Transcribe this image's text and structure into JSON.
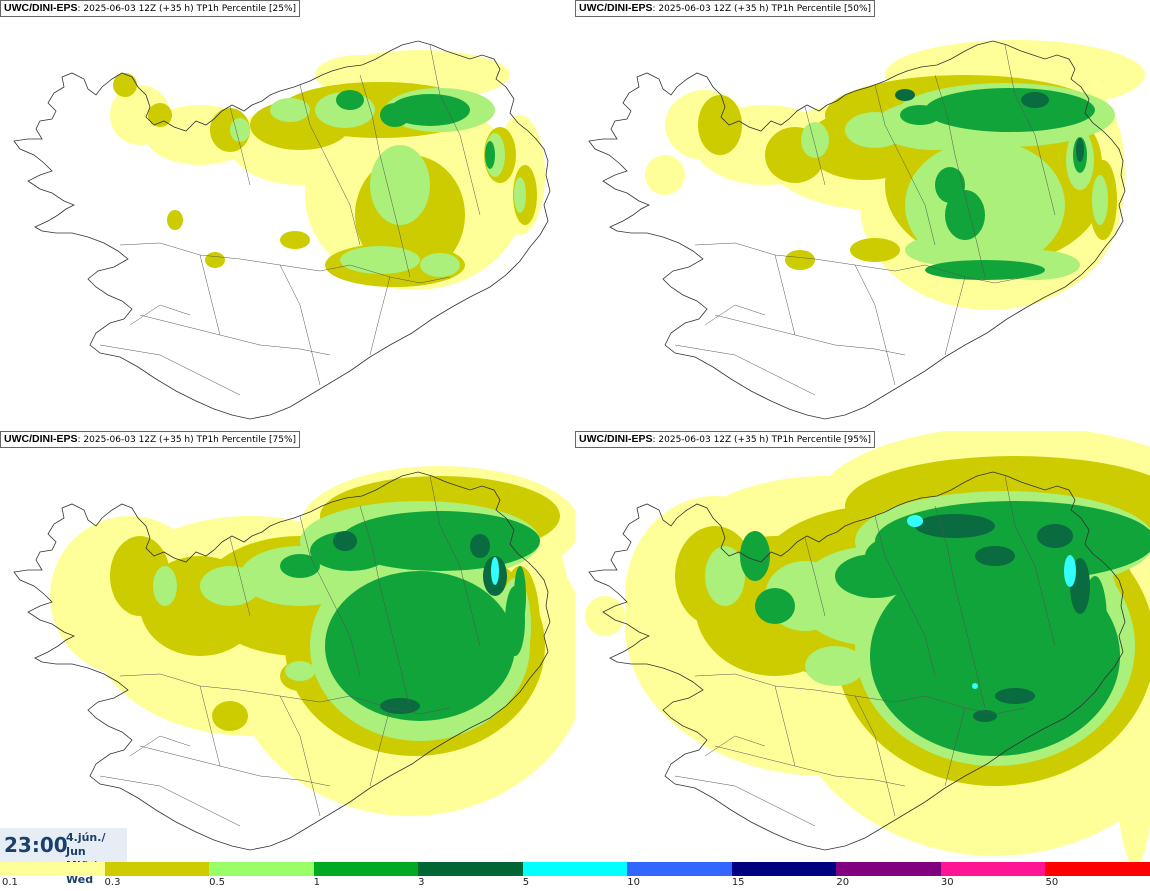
{
  "model": "UWC/DINI-EPS",
  "run_info": "2025-06-03 12Z (+35 h)",
  "variable": "TP1h Percentile",
  "panels": [
    {
      "percentile": "[25%]"
    },
    {
      "percentile": "[50%]"
    },
    {
      "percentile": "[75%]"
    },
    {
      "percentile": "[95%]"
    }
  ],
  "valid_time": "23:00",
  "valid_date": "4.jún./ Jun",
  "valid_day": "Mið./ Wed",
  "colorbar": {
    "levels": [
      "0.1",
      "0.3",
      "0.5",
      "1",
      "3",
      "5",
      "10",
      "15",
      "20",
      "30",
      "50"
    ],
    "colors": [
      "#ffff99",
      "#cccc00",
      "#99ff66",
      "#00aa22",
      "#006633",
      "#00ffff",
      "#3366ff",
      "#000080",
      "#800080",
      "#ff1493",
      "#ff0000"
    ]
  },
  "colors": {
    "light": "#ffff99",
    "olive": "#cccc00",
    "lgreen": "#aaf07a",
    "green": "#10a43a",
    "dgreen": "#0a6a40",
    "cyan": "#33ffff"
  }
}
